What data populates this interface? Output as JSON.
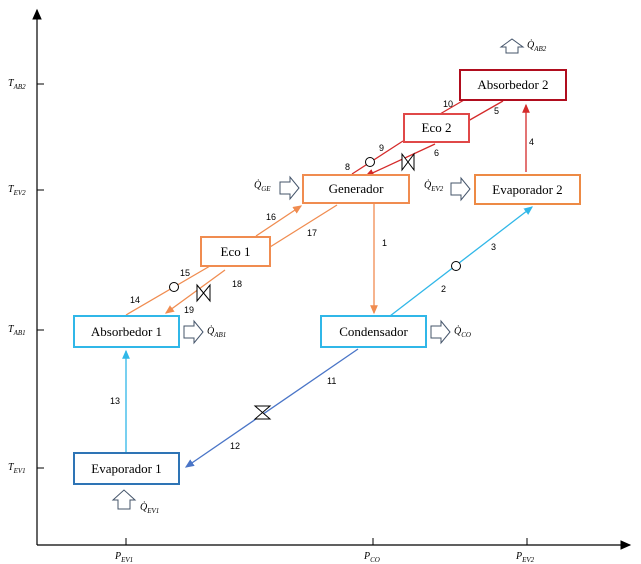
{
  "axes": {
    "y_ticks": {
      "tab2": "T_AB2",
      "tev2": "T_EV2",
      "tab1": "T_AB1",
      "tev1": "T_EV1"
    },
    "x_ticks": {
      "pev1": "P_EV1",
      "pco": "P_CO",
      "pev2": "P_EV2"
    }
  },
  "components": {
    "absorbedor2": "Absorbedor 2",
    "eco2": "Eco 2",
    "generador": "Generador",
    "evaporador2": "Evaporador 2",
    "eco1": "Eco 1",
    "absorbedor1": "Absorbedor 1",
    "condensador": "Condensador",
    "evaporador1": "Evaporador 1"
  },
  "heat": {
    "q_ab2": "Q̇_AB2",
    "q_ge": "Q̇_GE",
    "q_ev2": "Q̇_EV2",
    "q_ab1": "Q̇_AB1",
    "q_co": "Q̇_CO",
    "q_ev1": "Q̇_EV1"
  },
  "streams": [
    "1",
    "2",
    "3",
    "4",
    "5",
    "6",
    "8",
    "9",
    "10",
    "11",
    "12",
    "13",
    "14",
    "15",
    "16",
    "17",
    "18",
    "19"
  ],
  "colors": {
    "orange": "#f08c50",
    "red": "#d42a2a",
    "cyan": "#30b7e8",
    "blue": "#4a75c7",
    "dark_red": "#b00d1e",
    "dark_blue": "#2e74b5"
  }
}
